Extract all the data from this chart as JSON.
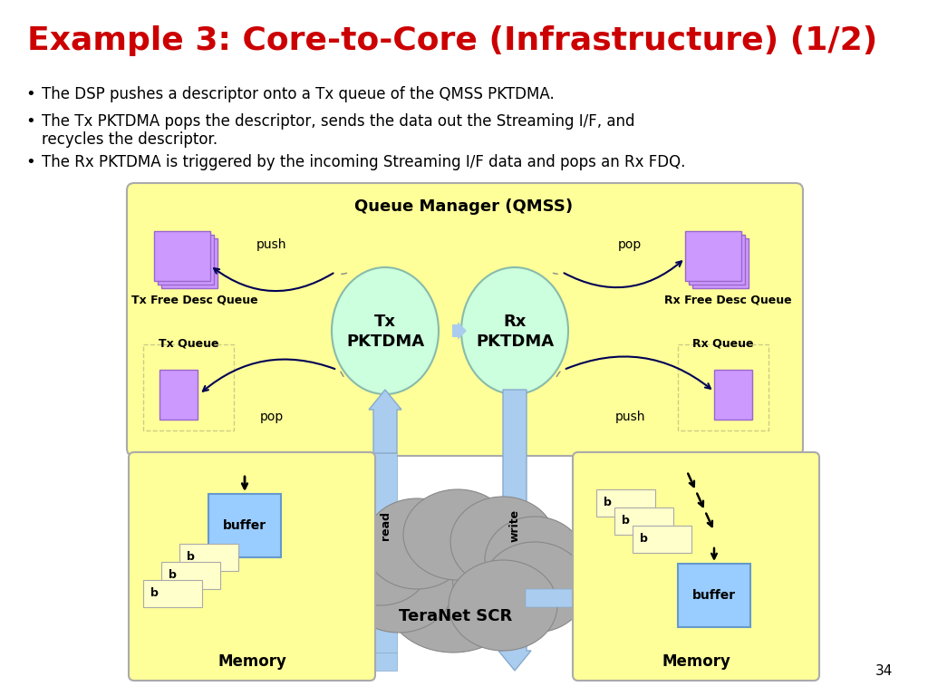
{
  "title": "Example 3: Core-to-Core (Infrastructure) (1/2)",
  "title_color": "#cc0000",
  "title_fontsize": 26,
  "bullet1": "The DSP pushes a descriptor onto a Tx queue of the QMSS PKTDMA.",
  "bullet2": "The Tx PKTDMA pops the descriptor, sends the data out the Streaming I/F, and",
  "bullet2b": "recycles the descriptor.",
  "bullet3": "The Rx PKTDMA is triggered by the incoming Streaming I/F data and pops an Rx FDQ.",
  "bg_color": "#ffffff",
  "qmss_box_color": "#ffff99",
  "qmss_box_edge": "#aaaaaa",
  "qmss_title": "Queue Manager (QMSS)",
  "ellipse_color": "#ccffdd",
  "ellipse_edge": "#88bbaa",
  "arrow_blue": "#aaccee",
  "arrow_dark": "#000055",
  "purple_box": "#cc99ff",
  "purple_box_edge": "#9966cc",
  "buffer_box_color": "#99ccff",
  "buffer_box_edge": "#6699cc",
  "memory_box_color": "#ffff99",
  "memory_box_edge": "#aaaaaa",
  "cloud_color": "#aaaaaa",
  "cloud_edge": "#888888",
  "page_number": "34",
  "line_color": "#888888",
  "dashed_box_color": "#cccc88"
}
